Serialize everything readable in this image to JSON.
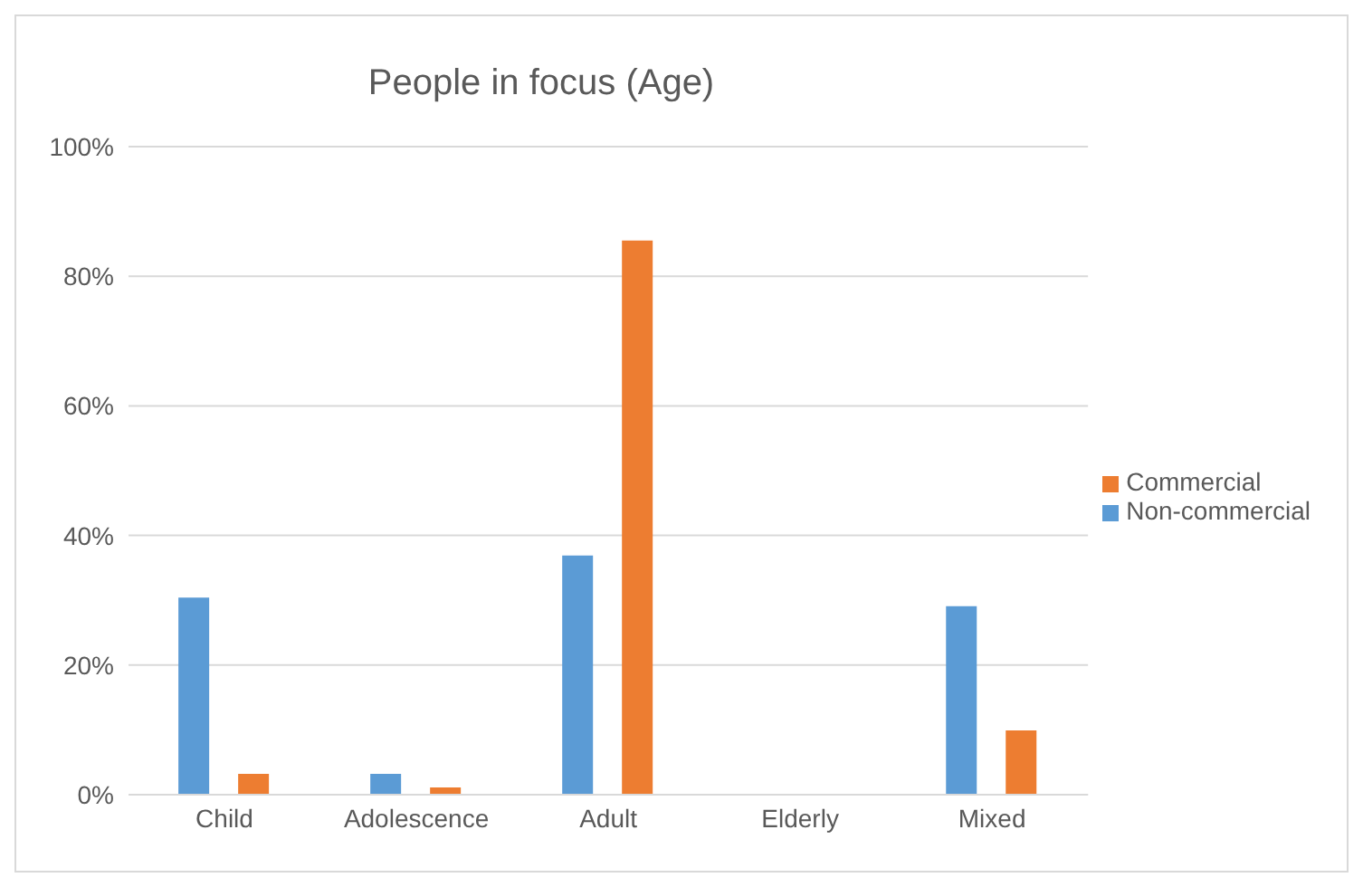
{
  "chart_data": {
    "type": "bar",
    "title": "People in focus (Age)",
    "categories": [
      "Child",
      "Adolescence",
      "Adult",
      "Elderly",
      "Mixed"
    ],
    "series": [
      {
        "name": "Non-commercial",
        "color": "#5b9bd5",
        "values": [
          30.4,
          3.2,
          36.9,
          0,
          29.1
        ]
      },
      {
        "name": "Commercial",
        "color": "#ed7d31",
        "values": [
          3.2,
          1.1,
          85.5,
          0,
          9.9
        ]
      }
    ],
    "ylim": [
      0,
      100
    ],
    "yticks": [
      {
        "value": 0,
        "label": "0%"
      },
      {
        "value": 20,
        "label": "20%"
      },
      {
        "value": 40,
        "label": "40%"
      },
      {
        "value": 60,
        "label": "60%"
      },
      {
        "value": 80,
        "label": "80%"
      },
      {
        "value": 100,
        "label": "100%"
      }
    ],
    "grid": "y",
    "legend": "right"
  }
}
